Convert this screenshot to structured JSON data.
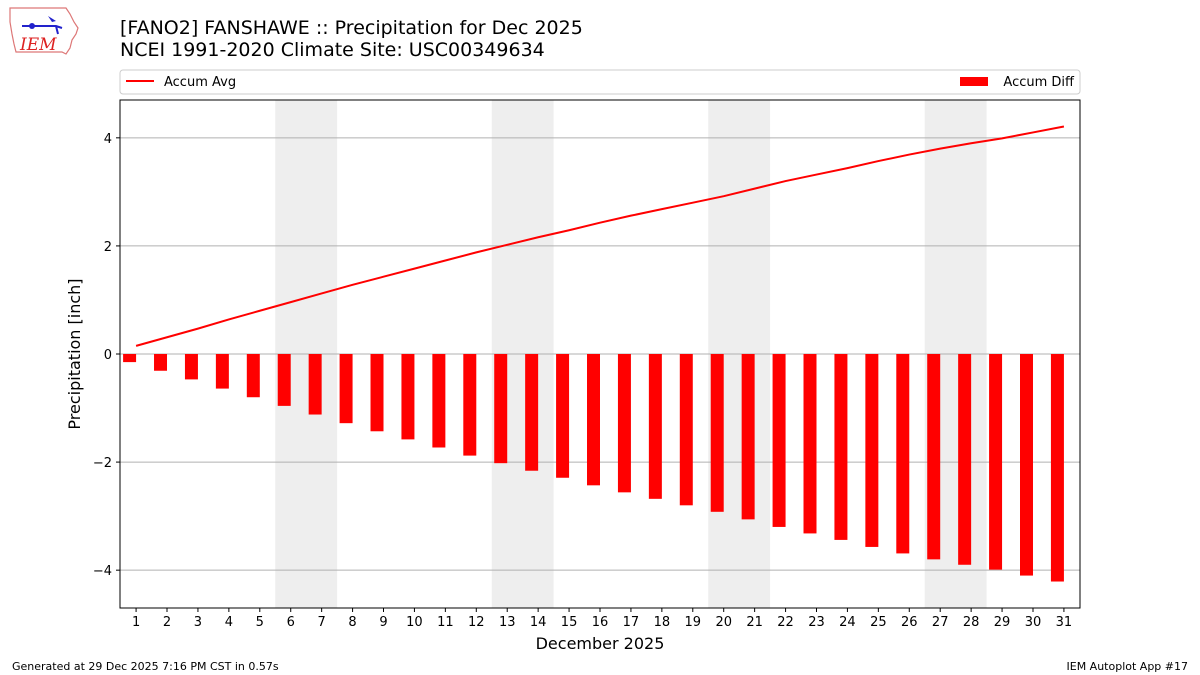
{
  "header": {
    "title_line1": "[FANO2] FANSHAWE :: Precipitation for Dec 2025",
    "title_line2": "NCEI 1991-2020 Climate Site: USC00349634"
  },
  "logo": {
    "text": "IEM"
  },
  "footer": {
    "left": "Generated at 29 Dec 2025 7:16 PM CST in 0.57s",
    "right": "IEM Autoplot App #17"
  },
  "chart_data": {
    "type": "bar",
    "xlabel": "December 2025",
    "ylabel": "Precipitation [inch]",
    "x": [
      1,
      2,
      3,
      4,
      5,
      6,
      7,
      8,
      9,
      10,
      11,
      12,
      13,
      14,
      15,
      16,
      17,
      18,
      19,
      20,
      21,
      22,
      23,
      24,
      25,
      26,
      27,
      28,
      29,
      30,
      31
    ],
    "xlim": [
      0.48,
      31.52
    ],
    "ylim": [
      -4.7,
      4.7
    ],
    "yticks": [
      -4,
      -2,
      0,
      2,
      4
    ],
    "grid": true,
    "legend_placement": "top (above plot)",
    "shaded_days": [
      [
        6,
        7
      ],
      [
        13,
        14
      ],
      [
        20,
        21
      ],
      [
        27,
        28
      ]
    ],
    "series": [
      {
        "name": "Accum Avg",
        "type": "line",
        "color": "#ff0000",
        "values": [
          0.15,
          0.31,
          0.47,
          0.64,
          0.8,
          0.96,
          1.12,
          1.28,
          1.43,
          1.58,
          1.73,
          1.88,
          2.02,
          2.16,
          2.29,
          2.43,
          2.56,
          2.68,
          2.8,
          2.92,
          3.06,
          3.2,
          3.32,
          3.44,
          3.57,
          3.69,
          3.8,
          3.9,
          3.99,
          4.1,
          4.21
        ]
      },
      {
        "name": "Accum Diff",
        "type": "bar",
        "color": "#ff0000",
        "values": [
          -0.15,
          -0.31,
          -0.47,
          -0.64,
          -0.8,
          -0.96,
          -1.12,
          -1.28,
          -1.43,
          -1.58,
          -1.73,
          -1.88,
          -2.02,
          -2.16,
          -2.29,
          -2.43,
          -2.56,
          -2.68,
          -2.8,
          -2.92,
          -3.06,
          -3.2,
          -3.32,
          -3.44,
          -3.57,
          -3.69,
          -3.8,
          -3.9,
          -3.99,
          -4.1,
          -4.21
        ]
      }
    ]
  }
}
